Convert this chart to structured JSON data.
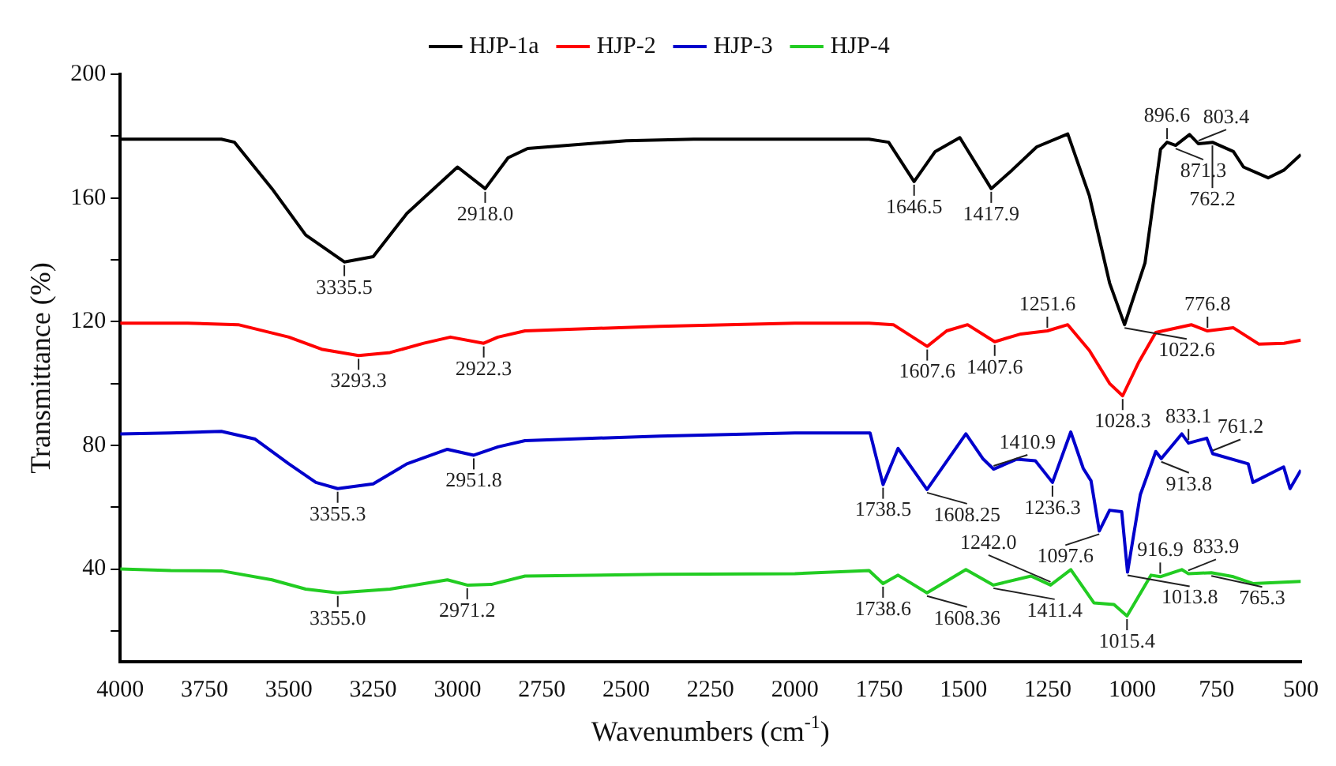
{
  "chart_data": {
    "type": "line",
    "xlabel": "Wavenumbers (cm$^{-1}$)",
    "ylabel": "Transmittance (%)",
    "xlim": [
      4000,
      500
    ],
    "xticks": [
      4000,
      3750,
      3500,
      3250,
      3000,
      2750,
      2500,
      2250,
      2000,
      1750,
      1500,
      1250,
      1000,
      750,
      500
    ],
    "ylim": [
      10,
      200
    ],
    "yticks": [
      {
        "value": 20,
        "label": null
      },
      40,
      {
        "value": 60,
        "label": null
      },
      80,
      {
        "value": 100,
        "label": null
      },
      120,
      {
        "value": 140,
        "label": null
      },
      160,
      {
        "value": 180,
        "label": null
      },
      200
    ],
    "grid": false,
    "legend": "top",
    "marker": "none",
    "line_style": "solid",
    "series": [
      {
        "name": "HJP-1a",
        "color": "#000000",
        "x": [
          4000,
          3850,
          3700,
          3661,
          3550,
          3450,
          3335.5,
          3250,
          3150,
          3000,
          2918,
          2850,
          2792,
          2500,
          2300,
          2000,
          1780,
          1722,
          1646.5,
          1584,
          1511,
          1417.9,
          1356,
          1283,
          1191,
          1127,
          1067,
          1022.6,
          962,
          916,
          896.6,
          871.3,
          830,
          803.4,
          762.2,
          700,
          670,
          597,
          550,
          500
        ],
        "values": [
          179,
          179,
          179,
          178,
          163,
          148,
          139.3,
          141,
          155,
          170,
          163,
          173,
          176,
          178.5,
          179,
          179,
          179,
          178,
          165.3,
          175,
          179.5,
          163,
          169,
          176.5,
          180.7,
          160.7,
          132.5,
          119,
          139,
          175.7,
          178,
          177,
          180.5,
          177.5,
          178,
          175,
          170,
          166.5,
          169,
          174
        ]
      },
      {
        "name": "HJP-2",
        "color": "#ff0000",
        "x": [
          4000,
          3800,
          3650,
          3500,
          3400,
          3293.3,
          3200,
          3100,
          3021,
          2922.3,
          2880,
          2800,
          2400,
          2000,
          1780,
          1708,
          1607.6,
          1550,
          1488,
          1407.6,
          1330,
          1251.6,
          1191,
          1127,
          1067,
          1028.3,
          980,
          930,
          825,
          776.8,
          700,
          624,
          550,
          500
        ],
        "values": [
          119.5,
          119.5,
          119,
          115,
          111,
          109,
          110,
          113,
          115,
          113,
          115,
          117,
          118.5,
          119.5,
          119.5,
          119,
          112,
          117,
          119,
          113.5,
          116,
          117,
          119,
          110.7,
          100,
          96,
          107,
          116.5,
          119,
          117,
          118,
          112.7,
          113,
          114
        ]
      },
      {
        "name": "HJP-3",
        "color": "#0000cc",
        "x": [
          4000,
          3850,
          3700,
          3600,
          3500,
          3420,
          3355.3,
          3250,
          3150,
          3030,
          2951.8,
          2880,
          2800,
          2400,
          2000,
          1777,
          1738.5,
          1694,
          1608.25,
          1493,
          1443,
          1410.9,
          1342,
          1287,
          1236.3,
          1182,
          1145,
          1122,
          1097.6,
          1067,
          1031,
          1013.8,
          976,
          930,
          913.8,
          853,
          833.1,
          779,
          761.2,
          656,
          642,
          551,
          532,
          500
        ],
        "values": [
          83.7,
          84,
          84.5,
          82,
          74,
          68,
          66,
          67.5,
          74,
          78.7,
          76.8,
          79.5,
          81.5,
          83,
          84,
          84,
          67.3,
          79,
          65.7,
          83.7,
          75.7,
          72.3,
          75.5,
          75,
          68,
          84.3,
          72.5,
          68.5,
          52.3,
          59,
          58.5,
          39,
          64,
          78,
          75.7,
          83.7,
          80.7,
          82.3,
          77.3,
          74,
          68,
          73,
          66,
          72
        ]
      },
      {
        "name": "HJP-4",
        "color": "#22cc22",
        "x": [
          4000,
          3850,
          3700,
          3550,
          3450,
          3355,
          3200,
          3030,
          2971.2,
          2900,
          2800,
          2400,
          2000,
          1780,
          1738.6,
          1694,
          1608.36,
          1493,
          1411.4,
          1300,
          1242,
          1182,
          1113,
          1054,
          1015.4,
          944,
          916.9,
          853,
          833.9,
          765.3,
          700,
          642,
          500
        ],
        "values": [
          40,
          39.5,
          39.4,
          36.5,
          33.5,
          32.3,
          33.5,
          36.5,
          34.8,
          35,
          37.7,
          38.3,
          38.5,
          39.5,
          35.3,
          38,
          32.3,
          39.8,
          34.8,
          37.7,
          34.8,
          39.8,
          29,
          28.5,
          24.8,
          38,
          37.5,
          39.8,
          38.5,
          38.8,
          37.5,
          35.3,
          36
        ]
      }
    ],
    "annotations": [
      {
        "text": "3335.5",
        "x": 3335.5,
        "y": 139.3
      },
      {
        "text": "2918.0",
        "x": 2918,
        "y": 163
      },
      {
        "text": "1646.5",
        "x": 1646.5,
        "y": 165.3
      },
      {
        "text": "1417.9",
        "x": 1417.9,
        "y": 163
      },
      {
        "text": "1022.6",
        "x": 1022.6,
        "y": 119
      },
      {
        "text": "896.6",
        "x": 896.6,
        "y": 178
      },
      {
        "text": "871.3",
        "x": 871.3,
        "y": 177
      },
      {
        "text": "803.4",
        "x": 803.4,
        "y": 177.5
      },
      {
        "text": "762.2",
        "x": 762.2,
        "y": 178
      },
      {
        "text": "3293.3",
        "x": 3293.3,
        "y": 109
      },
      {
        "text": "2922.3",
        "x": 2922.3,
        "y": 113
      },
      {
        "text": "1607.6",
        "x": 1607.6,
        "y": 112
      },
      {
        "text": "1407.6",
        "x": 1407.6,
        "y": 113.5
      },
      {
        "text": "1251.6",
        "x": 1251.6,
        "y": 117
      },
      {
        "text": "1028.3",
        "x": 1028.3,
        "y": 96
      },
      {
        "text": "776.8",
        "x": 776.8,
        "y": 117
      },
      {
        "text": "3355.3",
        "x": 3355.3,
        "y": 66
      },
      {
        "text": "2951.8",
        "x": 2951.8,
        "y": 76.8
      },
      {
        "text": "1738.5",
        "x": 1738.5,
        "y": 67.3
      },
      {
        "text": "1608.25",
        "x": 1608.25,
        "y": 65.7
      },
      {
        "text": "1410.9",
        "x": 1410.9,
        "y": 72.3
      },
      {
        "text": "1236.3",
        "x": 1236.3,
        "y": 68
      },
      {
        "text": "1097.6",
        "x": 1097.6,
        "y": 52.3
      },
      {
        "text": "1013.8",
        "x": 1013.8,
        "y": 39
      },
      {
        "text": "913.8",
        "x": 913.8,
        "y": 75.7
      },
      {
        "text": "833.1",
        "x": 833.1,
        "y": 80.7
      },
      {
        "text": "761.2",
        "x": 761.2,
        "y": 77.3
      },
      {
        "text": "3355.0",
        "x": 3355,
        "y": 32.3
      },
      {
        "text": "2971.2",
        "x": 2971.2,
        "y": 34.8
      },
      {
        "text": "1738.6",
        "x": 1738.6,
        "y": 35.3
      },
      {
        "text": "1608.36",
        "x": 1608.36,
        "y": 32.3
      },
      {
        "text": "1411.4",
        "x": 1411.4,
        "y": 34.8
      },
      {
        "text": "1242.0",
        "x": 1242,
        "y": 34.8
      },
      {
        "text": "1015.4",
        "x": 1015.4,
        "y": 24.8
      },
      {
        "text": "916.9",
        "x": 916.9,
        "y": 37.5
      },
      {
        "text": "833.9",
        "x": 833.9,
        "y": 38.5
      },
      {
        "text": "765.3",
        "x": 765.3,
        "y": 38.8
      }
    ]
  }
}
